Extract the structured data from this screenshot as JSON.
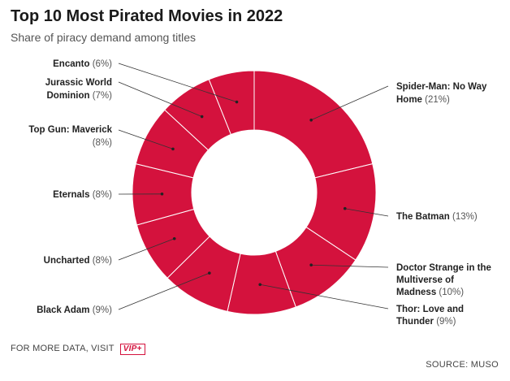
{
  "header": {
    "title": "Top 10 Most Pirated Movies in 2022",
    "subtitle": "Share of piracy demand among titles"
  },
  "footer": {
    "more_data_text": "FOR MORE DATA, VISIT",
    "vip_label": "VIP+",
    "source": "SOURCE: MUSO"
  },
  "colors": {
    "slice": "#d4123d",
    "slice_border": "#ffffff",
    "leader": "#333333"
  },
  "chart_data": {
    "type": "pie",
    "donut": true,
    "title": "Top 10 Most Pirated Movies in 2022",
    "subtitle": "Share of piracy demand among titles",
    "slices": [
      {
        "label": "Spider-Man: No Way Home",
        "value": 21,
        "display": "(21%)"
      },
      {
        "label": "The Batman",
        "value": 13,
        "display": "(13%)"
      },
      {
        "label": "Doctor Strange in the Multiverse of Madness",
        "value": 10,
        "display": "(10%)"
      },
      {
        "label": "Thor: Love and Thunder",
        "value": 9,
        "display": "(9%)"
      },
      {
        "label": "Black Adam",
        "value": 9,
        "display": "(9%)"
      },
      {
        "label": "Uncharted",
        "value": 8,
        "display": "(8%)"
      },
      {
        "label": "Eternals",
        "value": 8,
        "display": "(8%)"
      },
      {
        "label": "Top Gun: Maverick",
        "value": 8,
        "display": "(8%)"
      },
      {
        "label": "Jurassic World Dominion",
        "value": 7,
        "display": "(7%)"
      },
      {
        "label": "Encanto",
        "value": 6,
        "display": "(6%)"
      }
    ]
  }
}
